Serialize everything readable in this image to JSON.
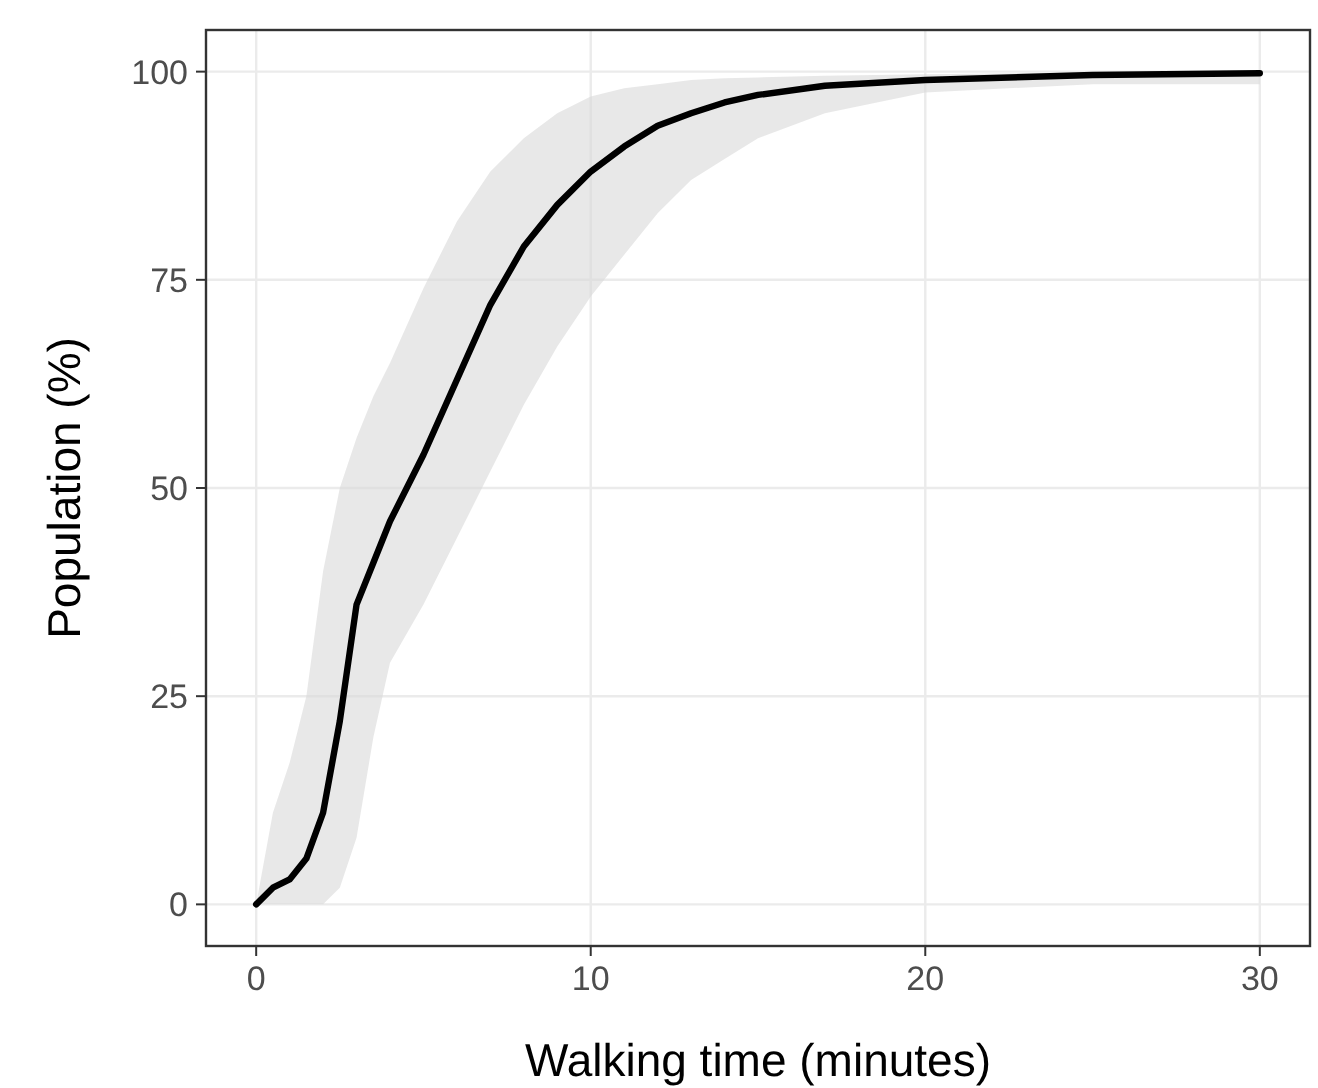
{
  "chart_data": {
    "type": "line",
    "xlabel": "Walking time (minutes)",
    "ylabel": "Population (%)",
    "x": [
      0,
      0.5,
      1,
      1.5,
      2,
      2.5,
      3,
      3.5,
      4,
      5,
      6,
      7,
      8,
      9,
      10,
      11,
      12,
      13,
      14,
      15,
      17,
      20,
      25,
      30
    ],
    "series": [
      {
        "color": "#000000",
        "values": [
          0,
          2,
          3,
          5.5,
          11,
          22,
          36,
          41,
          46,
          54,
          63,
          72,
          79,
          84,
          88,
          91,
          93.5,
          95,
          96.3,
          97.2,
          98.3,
          99,
          99.6,
          99.8
        ],
        "lower": [
          0,
          0,
          0,
          0,
          0,
          2,
          8,
          20,
          29,
          36,
          44,
          52,
          60,
          67,
          73,
          78,
          83,
          87,
          89.5,
          92,
          95,
          97.5,
          98.5,
          98.5
        ],
        "upper": [
          0,
          11,
          17,
          25,
          40,
          50,
          56,
          61,
          65,
          74,
          82,
          88,
          92,
          95,
          97,
          98,
          98.5,
          99,
          99.2,
          99.3,
          99.5,
          99.7,
          99.9,
          100
        ]
      }
    ],
    "xlim": [
      -1.5,
      31.5
    ],
    "xticks": [
      0,
      10,
      20,
      30
    ],
    "ylim": [
      -5,
      105
    ],
    "yticks": [
      0,
      25,
      50,
      75,
      100
    ],
    "grid": true,
    "line_style": "solid",
    "marker": "none"
  }
}
